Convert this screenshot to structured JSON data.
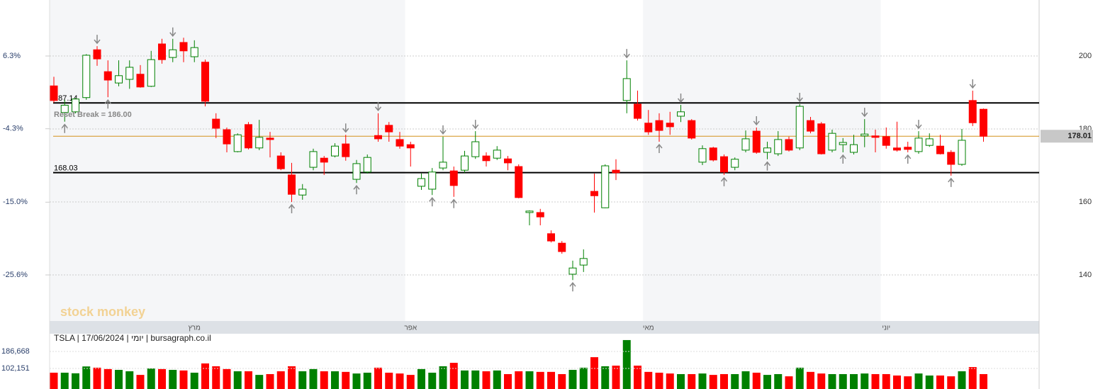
{
  "chart_data": {
    "type": "candlestick",
    "info": "TSLA | 17/06/2024 | יומי | bursagraph.co.il",
    "watermark": "stock monkey",
    "annotation": "Reset Break = 186.00",
    "categories": [
      null,
      null,
      null,
      null,
      null,
      null,
      null,
      null,
      null,
      null,
      null,
      null,
      null,
      "מרץ",
      null,
      null,
      null,
      null,
      null,
      null,
      null,
      null,
      null,
      null,
      null,
      null,
      null,
      null,
      null,
      null,
      null,
      null,
      null,
      "אפר",
      null,
      null,
      null,
      null,
      null,
      null,
      null,
      null,
      null,
      null,
      null,
      null,
      null,
      null,
      null,
      null,
      null,
      null,
      null,
      null,
      null,
      "מאי",
      null,
      null,
      null,
      null,
      null,
      null,
      null,
      null,
      null,
      null,
      null,
      null,
      null,
      null,
      null,
      null,
      null,
      null,
      null,
      null,
      null,
      "יוני",
      null,
      null,
      null,
      null,
      null,
      null,
      null,
      null,
      null
    ],
    "open": [
      191.8,
      184.5,
      184.7,
      188.6,
      201.7,
      195.7,
      192.6,
      193.6,
      195,
      191.7,
      203.3,
      199.6,
      203.7,
      199.8,
      198.3,
      182.7,
      179.8,
      173.8,
      181.2,
      174.8,
      177.5,
      172.6,
      167.4,
      161.9,
      169.5,
      172,
      172.6,
      175.9,
      166.2,
      168.2,
      178.2,
      181,
      177.1,
      175.7,
      164.3,
      163.5,
      169.3,
      168.5,
      168.7,
      172.4,
      172.6,
      172,
      171.8,
      169.7,
      157.1,
      157.1,
      151.3,
      148.7,
      140.2,
      142.7,
      162.9,
      158.4,
      168.7,
      187.8,
      186.8,
      181.6,
      182.3,
      181.6,
      183.5,
      182.3,
      170.9,
      174.8,
      172.4,
      169.5,
      174.2,
      179.4,
      173.6,
      173.2,
      177.1,
      174.8,
      182.3,
      181.4,
      174.2,
      175.7,
      173.6,
      178.1,
      178.1,
      177.9,
      174.8,
      175,
      173.8,
      175.5,
      175.3,
      173.6,
      170.3,
      187.8,
      185.4
    ],
    "high": [
      194.3,
      188,
      188.5,
      200.5,
      202.7,
      198.8,
      198.8,
      198.8,
      197.5,
      201.4,
      204.7,
      204.7,
      205,
      204.3,
      199,
      184.3,
      180.4,
      178.8,
      181.9,
      182.5,
      179.2,
      173.6,
      170.7,
      164.9,
      174.6,
      172.6,
      176.1,
      178.4,
      171.5,
      173,
      184.3,
      181.9,
      179.2,
      176.5,
      167.8,
      169.3,
      177.9,
      169.7,
      174,
      179.4,
      173.6,
      175.3,
      172.6,
      170.3,
      157.7,
      158.1,
      152.2,
      149.3,
      143.9,
      147,
      167.8,
      170.3,
      171.7,
      198.8,
      190.5,
      185.2,
      184.3,
      184.7,
      186.6,
      182.7,
      175.5,
      175.1,
      173,
      172.2,
      179.6,
      180.4,
      176.5,
      179.4,
      177.9,
      186.8,
      183.3,
      181.9,
      179.8,
      177.5,
      178.4,
      182.7,
      179.8,
      180.4,
      182,
      176.5,
      179.4,
      178.8,
      178.4,
      174.2,
      180,
      190.5,
      185.6
    ],
    "low": [
      187.2,
      182,
      184.3,
      188,
      197.3,
      188.7,
      191.7,
      191,
      191.3,
      191.5,
      197.9,
      198.3,
      198.3,
      198.3,
      186.2,
      177.5,
      173.6,
      173.6,
      174.4,
      174.2,
      172.2,
      168.7,
      160,
      160.6,
      168.7,
      167.4,
      172.2,
      171.3,
      165.2,
      167.8,
      176.5,
      176.5,
      174.6,
      169.7,
      163.3,
      161.9,
      168.7,
      161.4,
      168,
      171.8,
      169.7,
      171.5,
      168.7,
      161,
      153.6,
      153.6,
      148.9,
      145.8,
      138.6,
      140.8,
      157.1,
      158.3,
      166,
      184.3,
      182.3,
      178.4,
      176.5,
      178.4,
      181.9,
      177.1,
      170.1,
      171.1,
      167.4,
      168.7,
      173.6,
      173.2,
      171.7,
      172.6,
      173.8,
      174.2,
      178.8,
      173,
      173.6,
      173.6,
      173,
      175,
      173.6,
      174.6,
      173.8,
      173.6,
      173.2,
      175.1,
      173,
      167.2,
      169.9,
      180.8,
      176.5
    ],
    "close": [
      187.8,
      186.5,
      188.2,
      200.2,
      199.2,
      193.4,
      194.6,
      196.9,
      191.5,
      199,
      199,
      201.7,
      201.4,
      202.3,
      187.6,
      180.2,
      175.9,
      178.4,
      174.8,
      177.7,
      177.1,
      169.1,
      162.1,
      163.5,
      173.8,
      170.9,
      175.3,
      172.4,
      170.5,
      172.2,
      177.3,
      179.2,
      175.3,
      174.8,
      166.4,
      168.2,
      170.9,
      164.5,
      172.6,
      176.5,
      171.3,
      174.2,
      170.7,
      161.2,
      157.5,
      155.9,
      149.3,
      146.4,
      141.9,
      144.5,
      161.7,
      169.9,
      168,
      193.8,
      182.9,
      179.2,
      179.6,
      180.6,
      184.7,
      177.5,
      174.6,
      171.5,
      168.2,
      171.7,
      177.3,
      173.6,
      174.8,
      177.1,
      174.2,
      186.2,
      179.4,
      173.2,
      178.8,
      176.3,
      175.7,
      178.6,
      177.7,
      175.5,
      174.2,
      174.4,
      177.5,
      177.3,
      173.2,
      170.3,
      176.9,
      181.7,
      178.01
    ],
    "up_color": "#008000",
    "down_color": "#ff0000",
    "last_color": "#d4901a",
    "ylim": [
      127.38,
      215.34
    ],
    "yticks": [
      140,
      160,
      180,
      200
    ],
    "y2lim": [
      -32.31,
      14.46
    ],
    "y2ticks": [
      {
        "value": 6.3,
        "label": "6.3%"
      },
      {
        "value": -4.3,
        "label": "-4.3%"
      },
      {
        "value": -15,
        "label": "-15.0%"
      },
      {
        "value": -25.6,
        "label": "-25.6%"
      }
    ],
    "grid": true,
    "levels": [
      187.14,
      168.03
    ],
    "signals_down": [
      4,
      11,
      27,
      30,
      36,
      39,
      53,
      58,
      65,
      69,
      75,
      80,
      85
    ],
    "signals_up": [
      1,
      5,
      22,
      28,
      35,
      37,
      48,
      56,
      62,
      66,
      73,
      79,
      83
    ],
    "volume": {
      "values": [
        81000,
        81000,
        78000,
        112000,
        106000,
        99000,
        95000,
        88000,
        70000,
        102000,
        99000,
        95000,
        92000,
        81000,
        127000,
        113000,
        99000,
        88000,
        88000,
        70000,
        74000,
        88000,
        113000,
        88000,
        99000,
        88000,
        88000,
        85000,
        77000,
        81000,
        106000,
        81000,
        77000,
        70000,
        99000,
        81000,
        113000,
        130000,
        92000,
        92000,
        88000,
        92000,
        74000,
        88000,
        88000,
        85000,
        85000,
        74000,
        95000,
        106000,
        158000,
        113000,
        116000,
        243000,
        116000,
        85000,
        81000,
        77000,
        74000,
        74000,
        77000,
        70000,
        74000,
        74000,
        88000,
        81000,
        70000,
        74000,
        63000,
        106000,
        85000,
        77000,
        74000,
        74000,
        74000,
        77000,
        74000,
        74000,
        67000,
        63000,
        77000,
        67000,
        67000,
        63000,
        88000,
        109000,
        74000
      ],
      "ylim": [
        0,
        278000
      ],
      "yticks": [
        {
          "value": 186668,
          "label": "186,668"
        },
        {
          "value": 102151,
          "label": "102,151"
        }
      ]
    }
  }
}
